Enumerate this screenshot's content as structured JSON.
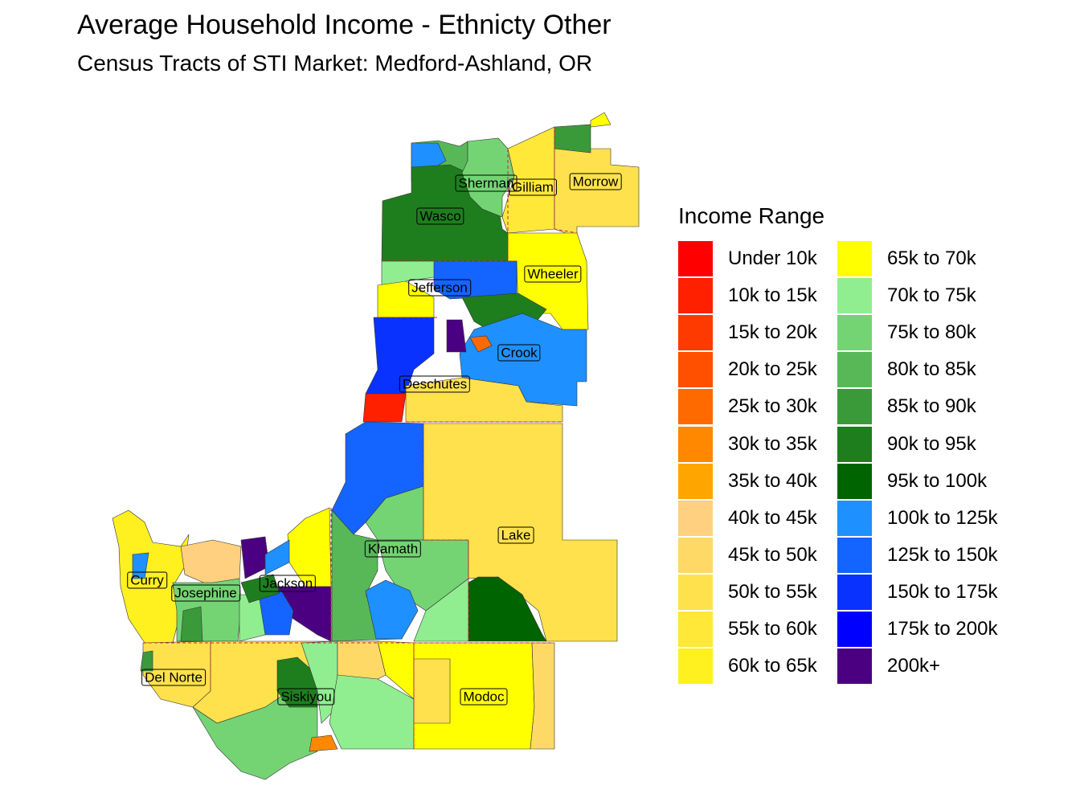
{
  "title": "Average Household Income - Ethnicty Other",
  "subtitle": "Census Tracts of STI Market: Medford-Ashland, OR",
  "legend": {
    "title": "Income Range",
    "items": [
      {
        "label": "Under 10k",
        "color": "#FF0000"
      },
      {
        "label": "10k to 15k",
        "color": "#FF2000"
      },
      {
        "label": "15k to 20k",
        "color": "#FF3A00"
      },
      {
        "label": "20k to 25k",
        "color": "#FF5000"
      },
      {
        "label": "25k to 30k",
        "color": "#FF6A00"
      },
      {
        "label": "30k to 35k",
        "color": "#FF8800"
      },
      {
        "label": "35k to 40k",
        "color": "#FFA500"
      },
      {
        "label": "40k to 45k",
        "color": "#FFD080"
      },
      {
        "label": "45k to 50k",
        "color": "#FFD966"
      },
      {
        "label": "50k to 55k",
        "color": "#FFE14D"
      },
      {
        "label": "55k to 60k",
        "color": "#FFE838"
      },
      {
        "label": "60k to 65k",
        "color": "#FFF020"
      },
      {
        "label": "65k to 70k",
        "color": "#FFFF00"
      },
      {
        "label": "70k to 75k",
        "color": "#90EE90"
      },
      {
        "label": "75k to 80k",
        "color": "#74D474"
      },
      {
        "label": "80k to 85k",
        "color": "#58B858"
      },
      {
        "label": "85k to 90k",
        "color": "#3A9A3A"
      },
      {
        "label": "90k to 95k",
        "color": "#1E7E1E"
      },
      {
        "label": "95k to 100k",
        "color": "#006400"
      },
      {
        "label": "100k to 125k",
        "color": "#1E90FF"
      },
      {
        "label": "125k to 150k",
        "color": "#1464FF"
      },
      {
        "label": "150k to 175k",
        "color": "#0A32FF"
      },
      {
        "label": "175k to 200k",
        "color": "#0000FF"
      },
      {
        "label": "200k+",
        "color": "#4B0082"
      }
    ]
  },
  "counties": [
    "Sherman",
    "Gilliam",
    "Morrow",
    "Wasco",
    "Wheeler",
    "Jefferson",
    "Crook",
    "Deschutes",
    "Lake",
    "Klamath",
    "Curry",
    "Josephine",
    "Jackson",
    "Del Norte",
    "Siskiyou",
    "Modoc"
  ]
}
